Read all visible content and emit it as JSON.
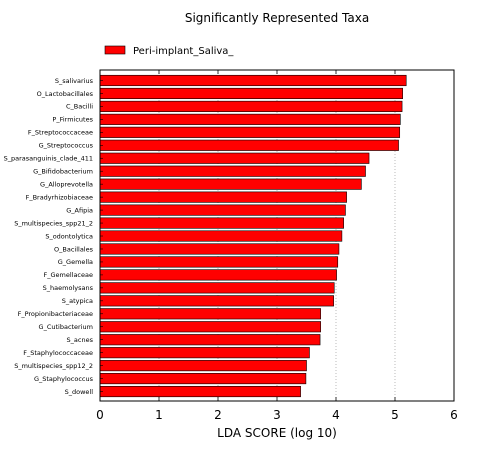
{
  "chart_data": {
    "type": "bar",
    "orientation": "horizontal",
    "title": "Significantly Represented Taxa",
    "xlabel": "LDA SCORE (log 10)",
    "ylabel": "",
    "xlim": [
      0,
      6
    ],
    "xticks": [
      0,
      1,
      2,
      3,
      4,
      5,
      6
    ],
    "grid": "vertical dotted",
    "legend_position": "top-left",
    "bar_color": "#ff0000",
    "series": [
      {
        "name": "Peri-implant_Saliva_",
        "categories": [
          "S_salivarius",
          "O_Lactobacillales",
          "C_Bacilli",
          "P_Firmicutes",
          "F_Streptococcaceae",
          "G_Streptococcus",
          "S_parasanguinis_clade_411",
          "G_Bifidobacterium",
          "G_Alloprevotella",
          "F_Bradyrhizobiaceae",
          "G_Afipia",
          "S_multispecies_spp21_2",
          "S_odontolytica",
          "O_Bacillales",
          "G_Gemella",
          "F_Gemellaceae",
          "S_haemolysans",
          "S_atypica",
          "F_Propionibacteriaceae",
          "G_Cutibacterium",
          "S_acnes",
          "F_Staphylococcaceae",
          "S_multispecies_spp12_2",
          "G_Staphylococcus",
          "S_dowell"
        ],
        "values": [
          5.19,
          5.13,
          5.12,
          5.09,
          5.08,
          5.06,
          4.56,
          4.5,
          4.43,
          4.18,
          4.16,
          4.13,
          4.1,
          4.05,
          4.03,
          4.01,
          3.97,
          3.96,
          3.74,
          3.74,
          3.73,
          3.55,
          3.5,
          3.49,
          3.4
        ]
      }
    ]
  }
}
